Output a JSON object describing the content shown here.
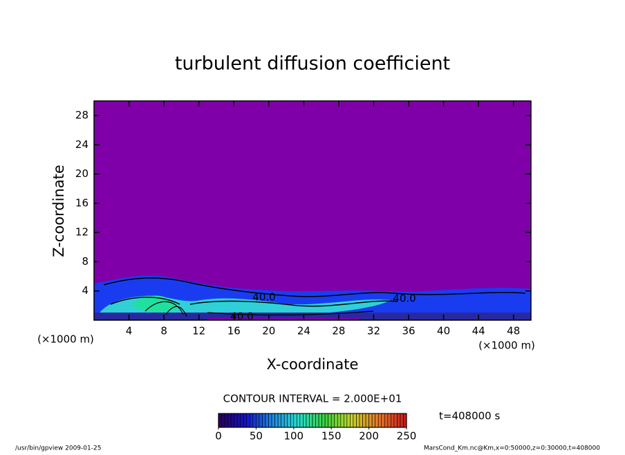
{
  "chart_data": {
    "type": "contour",
    "title": "turbulent diffusion coefficient",
    "x_label": "X-coordinate",
    "y_label": "Z-coordinate",
    "x_unit": "(×1000 m)",
    "y_unit": "(×1000 m)",
    "xlim": [
      0,
      50
    ],
    "ylim": [
      0,
      30
    ],
    "xticks": [
      4,
      8,
      12,
      16,
      20,
      24,
      28,
      32,
      36,
      40,
      44,
      48
    ],
    "yticks": [
      4,
      8,
      12,
      16,
      20,
      24,
      28
    ],
    "contour_interval": "CONTOUR INTERVAL = 2.000E+01",
    "annotations": [
      "40.0",
      "40.0",
      "40.0"
    ],
    "colorbar": {
      "lim": [
        0,
        250
      ],
      "ticks": [
        0,
        50,
        100,
        150,
        200,
        250
      ]
    },
    "time_label": "t=408000 s",
    "footer_left": "/usr/bin/gpview  2009-01-25",
    "footer_right": "MarsCond_Km.nc@Km,x=0:50000,z=0:30000,t=408000"
  }
}
